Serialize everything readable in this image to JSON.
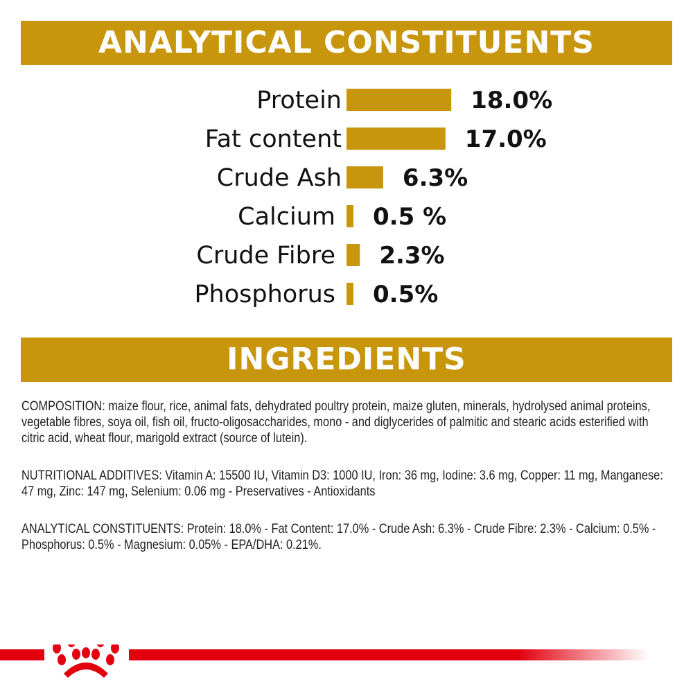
{
  "header": {
    "title": "ANALYTICAL CONSTITUENTS"
  },
  "chart_data": {
    "type": "bar",
    "orientation": "horizontal",
    "categories": [
      "Protein",
      "Fat content",
      "Crude Ash",
      "Calcium",
      "Crude Fibre",
      "Phosphorus"
    ],
    "values": [
      18.0,
      17.0,
      6.3,
      0.5,
      2.3,
      0.5
    ],
    "labels": [
      "18.0%",
      "17.0%",
      "6.3%",
      "0.5 %",
      "2.3%",
      "0.5%"
    ],
    "color": "#c8960c",
    "grid": false
  },
  "ingredients": {
    "title": "INGREDIENTS",
    "composition": "COMPOSITION: maize flour, rice, animal fats, dehydrated poultry protein, maize gluten, minerals, hydrolysed animal proteins, vegetable fibres, soya oil, fish oil, fructo-oligosaccharides, mono - and diglycerides of palmitic and stearic acids esterified with citric acid, wheat flour, marigold extract (source of lutein).",
    "additives": "NUTRITIONAL ADDITIVES: Vitamin A: 15500 IU, Vitamin D3: 1000 IU, Iron: 36 mg, Iodine: 3.6 mg, Copper: 11 mg, Manganese: 47 mg, Zinc: 147 mg, Selenium: 0.06 mg - Preservatives - Antioxidants",
    "constituents": "ANALYTICAL CONSTITUENTS: Protein: 18.0% - Fat Content: 17.0% - Crude Ash: 6.3% - Crude Fibre: 2.3% - Calcium: 0.5% - Phosphorus: 0.5% - Magnesium: 0.05% - EPA/DHA: 0.21%."
  },
  "footer": {
    "logo": "Royal Canin crown logo",
    "accent": "#e2000f"
  }
}
